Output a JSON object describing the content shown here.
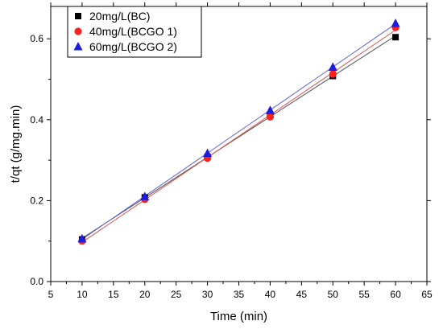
{
  "chart_data": {
    "type": "scatter",
    "title": "",
    "xlabel": "Time (min)",
    "ylabel": "t/qt (g/mg.min)",
    "xlim": [
      5,
      65
    ],
    "ylim": [
      0.0,
      0.68
    ],
    "xticks": [
      5,
      10,
      15,
      20,
      25,
      30,
      35,
      40,
      45,
      50,
      55,
      60,
      65
    ],
    "xtick_labels": [
      "5",
      "10",
      "15",
      "20",
      "25",
      "30",
      "35",
      "40",
      "45",
      "50",
      "55",
      "60",
      "65"
    ],
    "yticks": [
      0.0,
      0.2,
      0.4,
      0.6
    ],
    "ytick_labels": [
      "0.0",
      "0.2",
      "0.4",
      "0.6"
    ],
    "grid": false,
    "legend_position": "top-left",
    "fit_lines": true,
    "series": [
      {
        "name": "20mg/L(BC)",
        "marker": "square",
        "color": "#000000",
        "line_color": "#555555",
        "x": [
          10,
          20,
          30,
          40,
          50,
          60
        ],
        "y": [
          0.104,
          0.208,
          0.308,
          0.412,
          0.508,
          0.604
        ]
      },
      {
        "name": "40mg/L(BCGO 1)",
        "marker": "circle",
        "color": "#ff2020",
        "line_color": "#e05050",
        "x": [
          10,
          20,
          30,
          40,
          50,
          60
        ],
        "y": [
          0.1,
          0.203,
          0.305,
          0.407,
          0.513,
          0.628
        ]
      },
      {
        "name": "60mg/L(BCGO 2)",
        "marker": "triangle",
        "color": "#1c1cdc",
        "line_color": "#6060e0",
        "x": [
          10,
          20,
          30,
          40,
          50,
          60
        ],
        "y": [
          0.106,
          0.21,
          0.317,
          0.423,
          0.53,
          0.638
        ]
      }
    ]
  }
}
